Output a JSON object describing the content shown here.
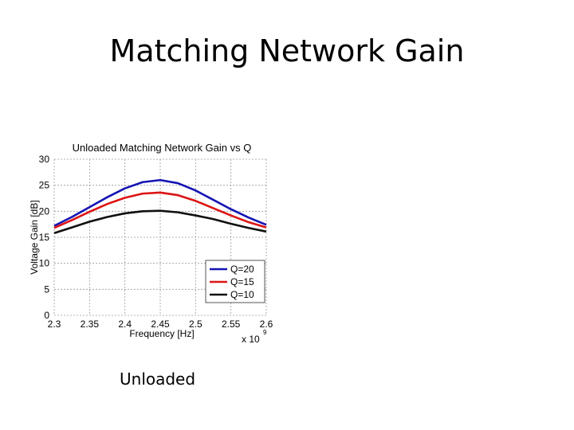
{
  "slide": {
    "title": "Matching Network Gain",
    "caption": "Unloaded"
  },
  "chart_data": {
    "type": "line",
    "title": "Unloaded Matching Network Gain vs Q",
    "xlabel": "Frequency [Hz]",
    "ylabel": "Voltage Gain [dB]",
    "x_multiplier_label": "x 10",
    "x_multiplier_exponent": "9",
    "xlim": [
      2.3,
      2.6
    ],
    "ylim": [
      0,
      30
    ],
    "xticks": [
      "2.3",
      "2.35",
      "2.4",
      "2.45",
      "2.5",
      "2.55",
      "2.6"
    ],
    "yticks": [
      "0",
      "5",
      "10",
      "15",
      "20",
      "25",
      "30"
    ],
    "grid": true,
    "legend_position": "bottom-right",
    "x": [
      2.3,
      2.325,
      2.35,
      2.375,
      2.4,
      2.425,
      2.45,
      2.475,
      2.5,
      2.525,
      2.55,
      2.575,
      2.6
    ],
    "series": [
      {
        "name": "Q=20",
        "color": "#1414b4",
        "values": [
          17.2,
          18.9,
          20.8,
          22.7,
          24.4,
          25.6,
          26.0,
          25.4,
          24.0,
          22.2,
          20.4,
          18.8,
          17.4
        ]
      },
      {
        "name": "Q=15",
        "color": "#dc1414",
        "values": [
          16.8,
          18.3,
          19.9,
          21.4,
          22.6,
          23.4,
          23.6,
          23.1,
          22.0,
          20.6,
          19.2,
          17.9,
          16.9
        ]
      },
      {
        "name": "Q=10",
        "color": "#101010",
        "values": [
          15.8,
          16.9,
          18.0,
          18.9,
          19.6,
          20.0,
          20.1,
          19.8,
          19.2,
          18.5,
          17.6,
          16.8,
          16.1
        ]
      }
    ]
  }
}
